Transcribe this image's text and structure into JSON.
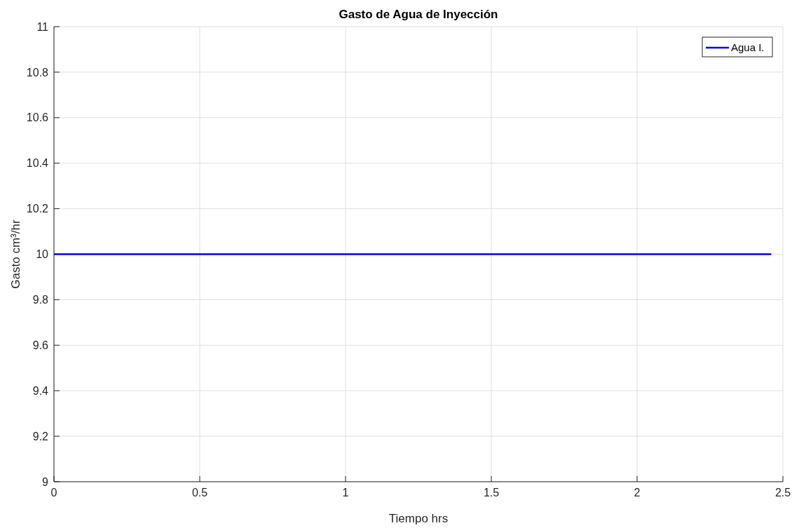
{
  "chart_data": {
    "type": "line",
    "title": "Gasto de Agua de Inyección",
    "xlabel": "Tiempo hrs",
    "ylabel": "Gasto cm³/hr",
    "x": [
      0,
      2.46
    ],
    "series": [
      {
        "name": "Agua I.",
        "color": "#0000ff",
        "values": [
          10,
          10
        ]
      }
    ],
    "xlim": [
      0,
      2.5
    ],
    "xticks": [
      0,
      0.5,
      1,
      1.5,
      2,
      2.5
    ],
    "ylim": [
      9,
      11
    ],
    "yticks": [
      9,
      9.2,
      9.4,
      9.6,
      9.8,
      10,
      10.2,
      10.4,
      10.6,
      10.8,
      11
    ],
    "grid": true,
    "legend": "top right"
  }
}
